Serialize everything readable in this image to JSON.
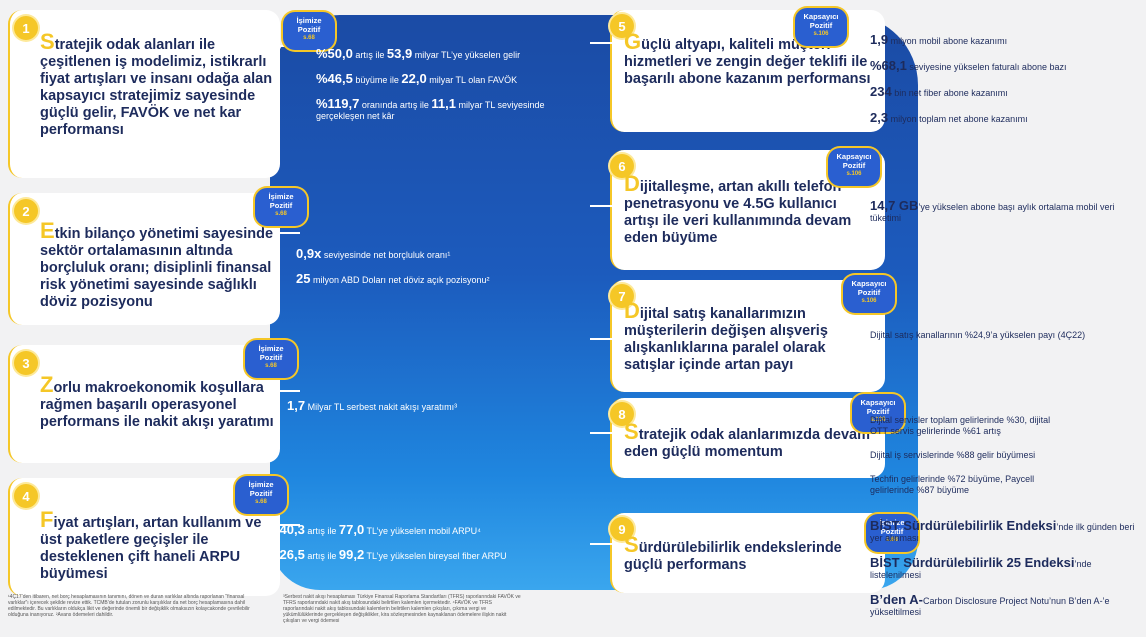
{
  "left_items": [
    {
      "num": "1",
      "initial": "S",
      "text": "tratejik odak alanları ile çeşitlenen iş modelimiz, istikrarlı fiyat artışları ve insanı odağa alan kapsayıcı stratejimiz sayesinde güçlü gelir, FAVÖK ve net kar performansı",
      "tag": [
        "İşimize",
        "Pozitif"
      ],
      "tag_page": "s.68"
    },
    {
      "num": "2",
      "initial": "E",
      "text": "tkin bilanço yönetimi sayesinde sektör ortalamasının altında borçluluk oranı; disiplinli finansal risk yönetimi sayesinde sağlıklı döviz pozisyonu",
      "tag": [
        "İşimize",
        "Pozitif"
      ],
      "tag_page": "s.68"
    },
    {
      "num": "3",
      "initial": "Z",
      "text": "orlu makroekonomik koşullara rağmen başarılı operasyonel performans ile nakit akışı yaratımı",
      "tag": [
        "İşimize",
        "Pozitif"
      ],
      "tag_page": "s.68"
    },
    {
      "num": "4",
      "initial": "F",
      "text": "iyat artışları, artan kullanım ve üst paketlere geçişler ile desteklenen çift haneli ARPU büyümesi",
      "tag": [
        "İşimize",
        "Pozitif"
      ],
      "tag_page": "s.68"
    }
  ],
  "left_metrics": [
    [
      {
        "strong": "%50,0",
        "rest_a": " artış ile ",
        "strong2": "53,9",
        "rest_b": " milyar TL’ye yükselen gelir"
      },
      {
        "strong": "%46,5",
        "rest_a": " büyüme ile ",
        "strong2": "22,0",
        "rest_b": " milyar TL olan FAVÖK"
      },
      {
        "strong": "%119,7",
        "rest_a": " oranında artış ile ",
        "strong2": "11,1",
        "rest_b": " milyar TL seviyesinde gerçekleşen net kâr"
      }
    ],
    [
      {
        "strong": "0,9x",
        "rest_a": " seviyesinde net borçluluk oranı¹",
        "strong2": "",
        "rest_b": ""
      },
      {
        "strong": "25",
        "rest_a": " milyon ABD Doları net döviz açık pozisyonu²",
        "strong2": "",
        "rest_b": ""
      }
    ],
    [
      {
        "strong": "1,7",
        "rest_a": " Milyar TL serbest nakit akışı yaratımı³",
        "strong2": "",
        "rest_b": ""
      }
    ],
    [
      {
        "strong": "%40,3",
        "rest_a": " artış ile ",
        "strong2": "77,0",
        "rest_b": " TL’ye yükselen mobil ARPU⁴"
      },
      {
        "strong": "%26,5",
        "rest_a": " artış ile ",
        "strong2": "99,2",
        "rest_b": " TL’ye yükselen bireysel fiber ARPU"
      }
    ]
  ],
  "right_items": [
    {
      "num": "5",
      "initial": "G",
      "text": "üçlü altyapı, kaliteli müşteri hizmetleri ve zengin değer teklifi ile başarılı abone kazanım performansı",
      "tag": [
        "Kapsayıcı",
        "Pozitif"
      ],
      "tag_page": "s.106"
    },
    {
      "num": "6",
      "initial": "D",
      "text": "ijitalleşme, artan akıllı telefon penetrasyonu ve 4.5G kullanıcı artışı ile veri kullanımında devam eden büyüme",
      "tag": [
        "Kapsayıcı",
        "Pozitif"
      ],
      "tag_page": "s.106"
    },
    {
      "num": "7",
      "initial": "D",
      "text": "ijital satış kanallarımızın müşterilerin değişen alışveriş alışkanlıklarına paralel olarak satışlar içinde artan payı",
      "tag": [
        "Kapsayıcı",
        "Pozitif"
      ],
      "tag_page": "s.106"
    },
    {
      "num": "8",
      "initial": "S",
      "text": "tratejik odak alanlarımızda devam eden güçlü momentum",
      "tag": [
        "Kapsayıcı",
        "Pozitif"
      ],
      "tag_page": "s.106"
    },
    {
      "num": "9",
      "initial": "S",
      "text": "ürdürülebilirlik endekslerinde güçlü performans",
      "tag": [
        "İşimize",
        "Pozitif"
      ],
      "tag_page": "s.68"
    }
  ],
  "right_metrics": [
    [
      {
        "strong": "1,9",
        "rest": " milyon mobil abone kazanımı"
      },
      {
        "strong": "%68,1",
        "rest": " seviyesine yükselen faturalı abone bazı"
      },
      {
        "strong": "234",
        "rest": " bin net fiber abone kazanımı"
      },
      {
        "strong": "2,3",
        "rest": " milyon toplam net abone kazanımı"
      }
    ],
    [
      {
        "strong": "14,7 GB",
        "rest": "’ye yükselen abone başı aylık ortalama mobil veri tüketimi"
      }
    ],
    [
      {
        "strong": "",
        "rest": "Dijital satış kanallarının %24,9’a yükselen payı (4Ç22)"
      }
    ],
    [
      {
        "strong": "",
        "rest": "Dijital servisler toplam gelirlerinde %30, dijital OTT servis gelirlerinde %61 artış"
      },
      {
        "strong": "",
        "rest": "Dijital iş servislerinde %88 gelir büyümesi"
      },
      {
        "strong": "",
        "rest": "Techfin gelirlerinde %72 büyüme, Paycell gelirlerinde %87 büyüme"
      }
    ],
    [
      {
        "strong": "BİST Sürdürülebilirlik Endeksi",
        "rest": "’nde ilk günden beri yer alınması"
      },
      {
        "strong": "BİST Sürdürülebilirlik 25 Endeksi",
        "rest": "’nde listelenilmesi"
      },
      {
        "strong": "B’den A-",
        "rest": "Carbon Disclosure Project Notu’nun B’den A-’e yükseltilmesi"
      }
    ]
  ],
  "footnotes": {
    "left": "¹4Ç17’den itibaren, net borç hesaplamasının tanımını, dönen ve duran varlıklar altında raporlanan \"finansal varlıklar\"ı içerecek şekilde revize ettik. TCMB’de tutulan zorunlu karşılıklar da net borç hesaplamasına dahil edilmektedir. Bu varlıkların oldukça likit ve değerinde önemli bir değişiklik olmaksızın kolaycakonde çevrilebilir olduğuna inanıyoruz. ²Avans ödemeleri dahildir.",
    "center": "³Serbest nakit akışı hesaplaması Türkiye Finansal Raporlama Standartları (TFRS) raporlarındaki FAVÖK ve TFRS raporlarındaki nakit akış tablosundaki belirtilen kalemlen içermektedir. ⁴FAVÖK ve TFRS raporlarındaki nakit akış tablosundaki kalemlerin belirtilen kalemlen çıkışları, çıkıma vergi ve yükümlülüklerinde gerçekleşen değişiklikler, kira sözleşmesinden kaynaklanan ödemelere ilişkin nakit çıkışları ve vergi ödemesi"
  },
  "colors": {
    "accent": "#f5c727",
    "navy": "#1d2b5c",
    "blue": "#1c5bbd"
  }
}
